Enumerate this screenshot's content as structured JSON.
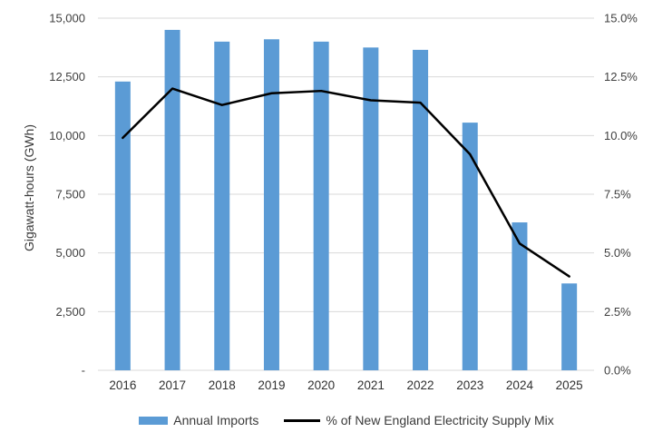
{
  "chart_data": {
    "type": "bar+line",
    "title": "",
    "categories": [
      "2016",
      "2017",
      "2018",
      "2019",
      "2020",
      "2021",
      "2022",
      "2023",
      "2024",
      "2025"
    ],
    "series": [
      {
        "name": "Annual Imports",
        "type": "bar",
        "axis": "left",
        "values": [
          12300,
          14500,
          14000,
          14100,
          14000,
          13750,
          13650,
          10550,
          6300,
          3700
        ],
        "color": "#5B9BD5"
      },
      {
        "name": "% of New England Electricity Supply Mix",
        "type": "line",
        "axis": "right",
        "values": [
          9.9,
          12.0,
          11.3,
          11.8,
          11.9,
          11.5,
          11.4,
          9.2,
          5.4,
          4.0
        ],
        "color": "#000000"
      }
    ],
    "left_axis": {
      "title": "Gigawatt-hours (GWh)",
      "min": 0,
      "max": 15000,
      "tick_interval": 2500,
      "tick_labels": [
        "-",
        "2,500",
        "5,000",
        "7,500",
        "10,000",
        "12,500",
        "15,000"
      ]
    },
    "right_axis": {
      "title": "",
      "min": 0,
      "max": 15,
      "tick_interval": 2.5,
      "tick_labels": [
        "0.0%",
        "2.5%",
        "5.0%",
        "7.5%",
        "10.0%",
        "12.5%",
        "15.0%"
      ]
    },
    "grid": true,
    "legend_position": "bottom",
    "colors": {
      "bar": "#5B9BD5",
      "line": "#000000",
      "gridline": "#D9D9D9",
      "text": "#3f3f3f"
    }
  }
}
